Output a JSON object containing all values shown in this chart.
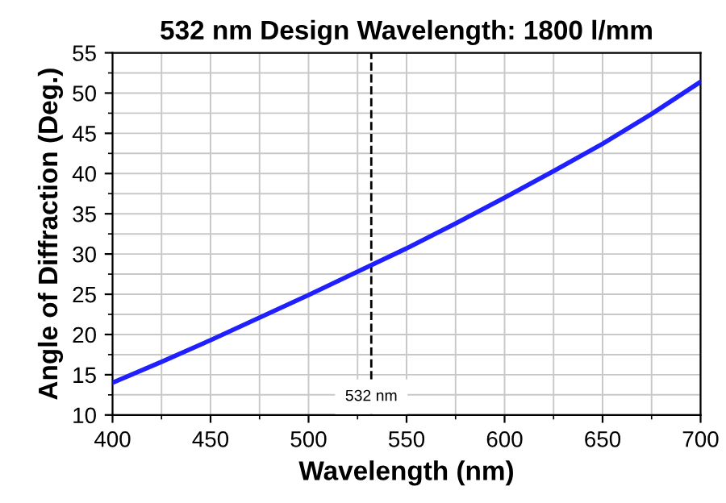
{
  "chart_data": {
    "type": "line",
    "title": "532 nm Design Wavelength: 1800 l/mm",
    "xlabel": "Wavelength (nm)",
    "ylabel": "Angle of Diffraction (Deg.)",
    "x": [
      400,
      425,
      450,
      475,
      500,
      525,
      550,
      575,
      600,
      625,
      650,
      675,
      700
    ],
    "series": [
      {
        "color": "#1f1fff",
        "values": [
          14.0,
          16.6,
          19.3,
          22.1,
          24.9,
          27.8,
          30.7,
          33.8,
          37.0,
          40.3,
          43.7,
          47.4,
          51.4
        ]
      }
    ],
    "xlim": [
      400,
      700
    ],
    "xticks": [
      400,
      450,
      500,
      550,
      600,
      650,
      700
    ],
    "ylim": [
      10,
      55
    ],
    "yticks": [
      10,
      15,
      20,
      25,
      30,
      35,
      40,
      45,
      50,
      55
    ],
    "ref_lines": [
      {
        "axis": "x",
        "value": 532,
        "label": "532 nm",
        "color": "#000000",
        "line_style": "dashed"
      }
    ],
    "grid": true,
    "marker": "none",
    "line_style": "solid",
    "legend": false
  }
}
